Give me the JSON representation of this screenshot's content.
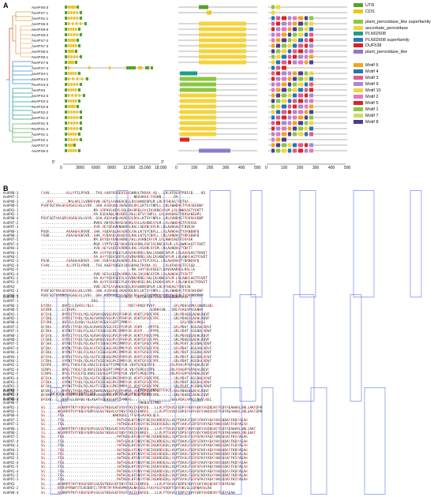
{
  "panel_a": {
    "label": "A",
    "genes": [
      "AsAPX6-3",
      "AsAPX7-1",
      "AsAPX1-1",
      "AsAPX8-3",
      "AsAPX8-5",
      "AsAPX8-4",
      "AsAPX7-2",
      "AsAPX7-3",
      "AsAPX8-2",
      "AsAPX8-1",
      "AsAPX7-5",
      "AsAPX7-4",
      "AsAPX4-1",
      "AsAPX4-2",
      "AsAPX4-3",
      "AsAPX3",
      "AsAPX2-3",
      "AsAPX2-4",
      "AsAPX2-5",
      "AsAPX2-2",
      "AsAPX1-2",
      "AsAPX1-3",
      "AsAPX1-4",
      "AsAPX1-1",
      "AsAPX2-1",
      "AsAPX7-2",
      "AsAPX8-2"
    ],
    "legend_domains": [
      {
        "label": "UTR",
        "color": "#5aa02c"
      },
      {
        "label": "CDS",
        "color": "#f0c419"
      },
      {
        "label": "plant_peroxidase_like superfamily",
        "color": "#8dc63f"
      },
      {
        "label": "ascorbate_peroxidase",
        "color": "#f5d33a"
      },
      {
        "label": "PLN02608",
        "color": "#1f9c8a"
      },
      {
        "label": "PLN02608 superfamily",
        "color": "#2e75b6"
      },
      {
        "label": "DUF538",
        "color": "#e02020"
      },
      {
        "label": "plant_peroxidase_like",
        "color": "#8e7cc3"
      }
    ],
    "legend_motifs": [
      {
        "label": "Motif 6",
        "color": "#f7a21b"
      },
      {
        "label": "Motif 4",
        "color": "#1f77b4"
      },
      {
        "label": "Motif 3",
        "color": "#e45a8a"
      },
      {
        "label": "Motif 9",
        "color": "#a58bd0"
      },
      {
        "label": "Motif 10",
        "color": "#f5d33a"
      },
      {
        "label": "Motif 2",
        "color": "#e377c2"
      },
      {
        "label": "Motif 5",
        "color": "#d62728"
      },
      {
        "label": "Motif 1",
        "color": "#8dc63f"
      },
      {
        "label": "Motif 7",
        "color": "#c7e06b"
      },
      {
        "label": "Motif 8",
        "color": "#4a3f8c"
      }
    ],
    "axis1_ticks": [
      "0",
      "3000",
      "6000",
      "9000",
      "12,000",
      "15,000",
      "18,000"
    ],
    "axis1_prefix": "5'",
    "axis1_suffix": "3'",
    "axis2_ticks": [
      "0",
      "100",
      "200",
      "300",
      "400",
      "500"
    ],
    "axis3_ticks": [
      "0",
      "100",
      "200",
      "300",
      "400",
      "500"
    ]
  },
  "panel_b": {
    "label": "B",
    "block1_names": [
      "AsAPX8-3",
      "AsAPX7-1",
      "AsAPX6-3",
      "AsAPX8-5",
      "AsAPX1-1",
      "AsAPX2-1",
      "AsAPX8-4",
      "AsAPX7-2",
      "AsAPX7-3",
      "AsAPX8-1",
      "AsAPX8-2",
      "AsAPX7-5",
      "AsAPX7-4",
      "AsAPX4-3",
      "AsAPX4-1",
      "AsAPX4-2",
      "AsAPX2-3",
      "AsAPX2-4",
      "AsAPX2-5",
      "AsAPX1-4",
      "AsAPX1-2",
      "AsAPX1-3",
      "AsAPX3",
      "AsAPX2-2",
      "AsAPX8-4"
    ],
    "block1_seqs": [
      "FAAV........ALLPFILPRVD...TAS.AAEPVDGEVIQKGHNVLTKVKA.AQ...LRLVFDGATPDIGD....KS",
      "............................................NEGHKKA.PDGHN......DV......",
      "...ARA.......MALAKLILVRRPKVN.DEYLAAVAEAEDGLRRAAKNVDPLM.LRLVFHDAGTFDTAA....",
      "PSRFSQTVAGGRSRGAGGALLVVR..GHA.ASDAAQLAKAERDLRALLKTSYCNPLL.LRLAWHDAGTYDVSKKEWP",
      ".........................MA.GRPAVSAEYLRQLEKARRDLRALIASKNCAPLM.LRLAWHDAGTYDKTT",
      ".........................MA.ESDAAQLAKAERDLRALLKTSYCNPLL.LRLAWHDAGTYDVSKKEWPQ",
      "PSRFSQTVAGGRSRGAGGALLVVR..GHA.ASDAAQLAKAERDLRALLKTSYCNPLL.LRLAWHDAGTYDVSKKEWP",
      ".........................MVKS.AKYQEAVAEAKRKLRALLAEKNCAPLM.LRLAWHDAGTFDVSSK",
      ".........................VVR.AEYQRAVKNAKRKLRALLAEKNCAPLM.LRLAWHSAGTFDVASK",
      "PSQK........AKAAGHGRSVR..GHA.ASDAAQLAKAERDLRALLKTSYCNPLL.LRLAWHDAGTYDKNEWPQ",
      "PSQK........AKAAGHGRSVR..GHA.ASDAAQLAKAERDLRALLKTSYCNPLL.LRLAWHDAGTYDKNEWPQ",
      ".........................MA.EKYQEAVAEAKRKLRALLAEKNCAPLM.LRLAWHDAGTFDVASK",
      ".........................MGK.SYPTVSEEYQKAIEKAKRKLRGFIAEKKCAPLM.LRLAWHSAGTFDVET",
      ".........................VVD.AEYLKQIDKARRDLRALIASKNCAPIM.LRLAWHDAGTYDKTT",
      ".........................MA.AAYYQSVSEEYLKAVDKARRELRALIASKNCAPLM.LRLAWHSAGTYDVET",
      ".........................MA.AAYYQSVSEEYLKAVDKARRELRALIASKNCAPLM.LRLAWHSAGTYDVET",
      "PSQK........AKAAGHGRSVR..GHA.ASDAAQLAKAERDLRALLKTSYCNPLL.LRLAWHDAGTYDKNEWPQ",
      "FAAV........ALLPFILPRVD...TAS.AAEPVDGEVIQKGHNVLTKVKA.AQ...LRLVFHDAGTFDIGD...",
      "...........................................MA.AAYYQSVSEEYLKAVDKARRELRALIA",
      ".........................VVD.AEYLKQIDKARRDLRALIASKNCAPIM.LRLAWHDAGTYDKTT",
      ".........................MA.AAYYQSVSEEYLKAVDKARRELRALIASKNCAPLM.LRLAWHSAGTYDVET",
      ".........................MA.AAYYQSVSEEYLKAVDKARRELRALIASKNCAPLM.LRLAWHSAGTYDVET",
      ".........................VVD.DEYIAAVAEAEDGLRRAAKNVDPLM.LRLVFHDAGTFDVSSK",
      "PSRFSQTVAGGRSRGAGGALLVVR..GHA.ASDAAQLAKAERDLRALLKTSYCNPLL.LRLAWHDAGTYDVSKKEWP",
      "PSRFSQTVAWRGSRGAGGALLVVR..GHA.ASDAAQLAKAERDLRALLKTSYCNPLL.LRLAWHDAGTYDVSKKEWP"
    ],
    "block2_names": [
      "AsAPX8-3",
      "AsAPX7-1",
      "AsAPX6-3",
      "AsAPX8-5",
      "AsAPX1-1",
      "AsAPX2-1",
      "AsAPX8-4",
      "AsAPX7-2",
      "AsAPX7-3",
      "AsAPX8-1",
      "AsAPX8-2",
      "AsAPX7-5",
      "AsAPX7-4",
      "AsAPX4-3",
      "AsAPX4-1",
      "AsAPX4-2",
      "AsAPX2-3",
      "AsAPX2-4",
      "AsAPX2-5",
      "AsAPX1-4",
      "AsAPX1-2",
      "AsAPX1-3",
      "AsAPX3",
      "AsAPX2-2",
      "AsAPX8-4"
    ],
    "block2_seqs": [
      "........................................GGS..DGTGMLHAYVNGGSGGGGGGVGAVK.......",
      "........................DVG.................................................",
      "EPIRK.....QVPILLSVADLYQLA................YNITAPKQFPVVP.........GRLPDAGAPKGSNHVLNEL",
      "GRIRD.....LCIRVAI...................................GDRKGSN...GRLPDAGAPKGSNHV",
      "QFIKQ.....RYPDITYADLYQLAGVVAVEVSGGPVIPFHPGR.VDKTGPEQCPPE.......GRLPDAEQGADHLRQVF",
      "QFIKQ.....RYPDITYADLYQLAGVVAVEVSGGPVIPFHPGR.VDKTGPEQCPPE.......GRLPDAEQGADHLRQVF",
      "EPIRK.....QVPILLSVADLYQLASATAIEASGGPTIPMRYG.......................GRLPDAGAPKGS",
      "QFIKA.....RYPDITYADLYQLAGVVAVEVSGGPEIPFRPGR.VDKP...QPPPE.......GRLPDAT.KGSDHLRDVF",
      "QFIKA.....KYPNITYADLFQLASATAIEEAGGPKIPMRYGR.VDKP...GPPPE.......GRLPDAT.KGSDHLRDVF",
      "QFIKQ.....RYPDITYADLYQLAGVVAVEVSGGPVIPFHPGR.VDKTGPEQCPPE.......GRLPDAEQGADHLRQVF",
      "QFIKQ.....RYPDITYADLYQLAGVVAVEVSGGPVIPFHPGR.VDKTGPEQCPPE.......GRLPDAEQGADHLRQVF",
      "QFIKA.....KYPNITYADLFQLASATAIEEAGGPKIPMRYGR.VDVTGPEQCPPE.......GRLPDAT.KGSDHLRDVF",
      "QFIKA.....KYPNITYADLFQLASATAIEEAGGPKIPMRYGR.VDVTGPEQCPPE.......GRLPDAT.KGSDHLRDVF",
      "QFIKA.....KYPNITYADLFQLASATAIEEAGGPKIPMRYGR.VDVTGPEQCPPE.......GRLPDAT.KGSDHLRDVF",
      "QFIKA.....KYPNITYADLFQLASATAIEEAGGPKIPMRYGR.VDVTGPEQCPPE.......GRLPDAT.KGSDHLRDVF",
      "QFIKA.....KYPNITYADLFQLASATAIEEAGGPKIPMRYGR.VDVTGPEQCPPE.......GRLPDAT.KGSDHLRDVF",
      "SIRPE.....RPGLTYADLFQLARAIIEEAGGPTIPMKYGR.VDVTGPEQCPPE.......GRLPDAGPPSPAQHLREVF",
      "SIRPE.....RPGLTYADLFQLARAIIEEAGGPTIPMKYGR.VDVTGPEQCPPE.......GRLPDAGPPSPAQHLREVF",
      "SIRPE.....RPGLTYADLFQLARAIIEEAGGPTIPMKYGR.VDVTGPEQCPPE.......GRLPDAGPPSPAQHLREVF",
      "QFIKA.....KYPNITYADLFQLASATAIEEAGGPKIPMRYGR.VDVTGPEQCPPE.......GRLPDAT.KGSDHLRDVF",
      "QFIKA.....KYPNITYADLFQLASATAIEEAGGPKIPMRYGR.VDVTGPEQCPPE.......GRLPDAT.KGSDHLRDVF",
      "QFIKA.....KYPNITYADLFQLASATAIEEAGGPKIPMRYGR.VDVTGPEQCPPE.......GRLPDAT.KGSDHLRDVF",
      "QFIKQ.....RYPDITYADLYQLAGVVAVEVSGGPVIPFHPGR.VDKTGPEQCPPE.......GRLPDAEQGADHLRQVF",
      "QFIKQ.....RYPDITYADLYQLAGVVAVEVSGGPVIPFHPGR.VDKTGPEQCPPE.......GRLPDAEQGADHLRQVF",
      "EPIRK.....QVPILLSVADLYQLASATAIEASGGPTIPMRYG...................GRLPDAGAPKGSNHVLNEL"
    ],
    "block3_names": [
      "AsAPX8-3",
      "AsAPX7-1",
      "AsAPX6-3",
      "AsAPX8-5",
      "AsAPX1-1",
      "AsAPX2-1",
      "AsAPX8-4",
      "AsAPX7-2",
      "AsAPX7-3",
      "AsAPX8-1",
      "AsAPX8-2",
      "AsAPX7-5",
      "AsAPX7-4",
      "AsAPX4-3",
      "AsAPX4-1",
      "AsAPX4-2",
      "AsAPX2-3",
      "AsAPX2-4",
      "AsAPX2-5",
      "AsAPX1-4",
      "AsAPX1-2",
      "AsAPX1-3",
      "AsAPX3",
      "AsAPX2-2",
      "AsAPX8-4"
    ],
    "block3_seqs": [
      "..............................................FFRKTLYNTSFPFACK...........",
      "....GNCQQWG.PRRNVFRNTRSGRE.....WVL.PFYF.VLFPSGGVRHVW..............",
      "..................................................................",
      "..............................................YRKNSRSFMNV.................",
      "SG......WGKRPRTKYYKDGPGRPGGGSWTKEWLKFDNSYFKEIKEKRDQ...LLVLPTDAVLFEDPSFKVYAEKYAKDQDAFFKDYAEAHAKLSNLGAKFDPK",
      "SG......WGKRPRTKYYKDGPGRPGGGSWTKEWLKFDNSYFKEIKEKRDQ...LLVLPTDAVLFEDPSFKVYAEKYAKDQDAFFKDYAEAHAKLSNLGAKFDPK",
      "SG......FSG.......................WAKNQGLLTFSPQAAAAQLQLS.............",
      "SG......FSG.........................PWTKEWLKFDNSYFKEIKEKRDEDLLVLPTDAVLFEDPSFKVYAEKYAKDQDAFFKDYAEAH",
      "SG......FSG.........................PWTKEWLKFDNSYFKEIKEKRDEDLLVLPTDAVLFEDPSFKVYAEKYAKDQDAFFKDYAEAH",
      "SG......WGKRPRTKYYKDGPGRPGGGSWTKEWLKFDNSYFKEIKEKRDQ...LLVLPTDAVLFEDPSFKVYAEKYAKDQDAFFKDYAEAHAKLSNLGAKF",
      "SG......WGKRPRTKYYKDGPGRPGGGSWTKEWLKFDNSYFKEIKEKRDQ...LLVLPTDAVLFEDPSFKVYAEKYAKDQDAFFKDYAEAHAKLSNLGAKF",
      "SG......FSG.........................PWTKEWLKFDNSYFKEIKEKRDEDLLVLPTDAVLFEDPSFKVYAEKYAKDQDAFFKDYAEAH",
      "SG......FSG.........................PWTKEWLKFDNSYFKEIKEKRDEDLLVLPTDAVLFEDPSFKVYAEKYAKDQDAFFKDYAEAH",
      "SG......FSG.........................PWTKEWLKFDNSYFKEIKEKRDEDLLVLPTDAVLFEDPSFKVYAEKYAKDQDAFFKDYAEAH",
      "SG......FDG.........................AWTKEWLKFDNSYFKEIKEKRDEDLLVLPTDAVLFEDPSFKVYAEKYAKDQDAFFKDYAEAH",
      "SG......FDG.........................AWTKEWLKFDNSYFKEIKEKRDEDLLVLPTDAVLFEDPSFKVYAEKYAKDQDAFFKDYAEAH",
      "SG......FDG.........................AWTKEWLKFDNSYFKEIKEKRDEDLLVLPTDAVLFEDPSFKVYAEKYAKDQDAFFKDYAEAH",
      "SG......FDG.........................AWTKEWLKFDNSYFKEIKEKRDEDLLVLPTDAVLFEDPSFKVYAEKYAKDQDAFFKDYAEAH",
      "SG......FDG.........................AWTKEWLKFDNSYFKEIKEKRDEDLLVLPTDAVLFEDPSFKVYAEKYAKDQDAFFKDYAEAH",
      "SG......FSG.........................PWTKEWLKFDNSYFKEIKEKRDEDLLVLPTDAVLFEDPSFKVYAEKYAKDQDAFFKDYAEAH",
      "SG......FSG.........................PWTKEWLKFDNSYFKEIKEKRDEDLLVLPTDAVLFEDPSFKVYAEKYAKDQDAFFKDYAEAH",
      "SG......FSG.........................PWTKEWLKFDNSYFKEIKEKRDEDLLVLPTDAVLFEDPSFKVYAEKYAKDQDAFFKDYAEAH",
      "SG......WGKRPRTKYYKDGPGRPGGGSWTKEWLKFDNSYFKEIKEKRDQ...LLVLPTDAVLFEDPSFKVYAEKYAKDQDAFFKDYAEAH",
      "SG......RRRVPPRWFRTLRQDRFCLTPPRTPFPPNVVMVHALNKQEGLYAAAYGGPVADPTQAPHKLSLGQRNARKLRA",
      "SG......WGKRPRTKYYKDGPGRPGGGSWTKEWLKFDNSYFKEIKEKRDQ...LLVLPTDAVLFEDPSFKVYAEKYAKDQDAFFKDYAEAH"
    ]
  }
}
